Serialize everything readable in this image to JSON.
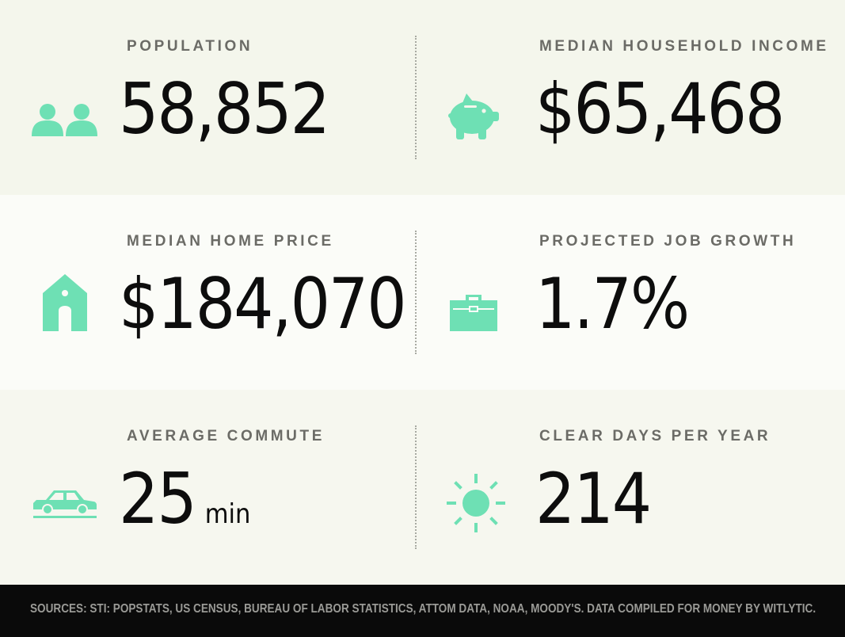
{
  "stats": {
    "population": {
      "label": "POPULATION",
      "value": "58,852",
      "icon": "people-icon"
    },
    "income": {
      "label": "MEDIAN HOUSEHOLD INCOME",
      "value": "$65,468",
      "icon": "piggy-bank-icon"
    },
    "home_price": {
      "label": "MEDIAN HOME PRICE",
      "value": "$184,070",
      "icon": "house-icon"
    },
    "job_growth": {
      "label": "PROJECTED JOB GROWTH",
      "value": "1.7%",
      "icon": "briefcase-icon"
    },
    "commute": {
      "label": "AVERAGE COMMUTE",
      "value": "25",
      "unit": "min",
      "icon": "car-icon"
    },
    "clear_days": {
      "label": "CLEAR DAYS PER YEAR",
      "value": "214",
      "icon": "sun-icon"
    }
  },
  "footer": {
    "sources": "SOURCES: STI: POPSTATS, US CENSUS, BUREAU OF LABOR STATISTICS, ATTOM DATA, NOAA, MOODY'S. DATA COMPILED FOR MONEY BY WITLYTIC."
  },
  "colors": {
    "accent": "#6ee0b4",
    "footer_bg": "#0a0a0a"
  }
}
